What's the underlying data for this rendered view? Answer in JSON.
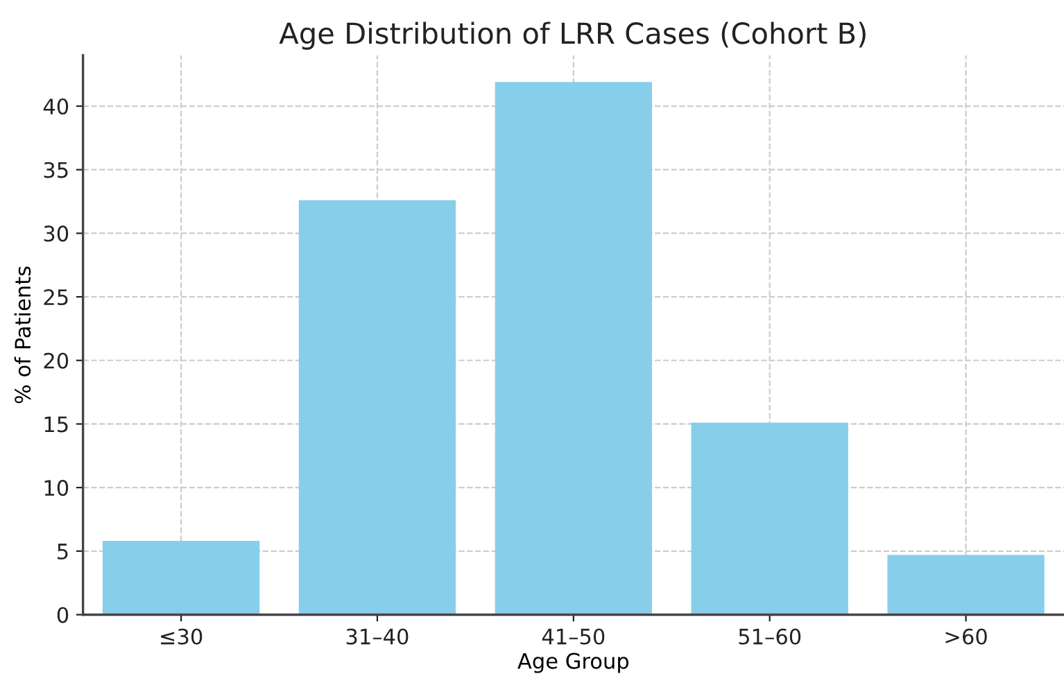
{
  "chart_data": {
    "type": "bar",
    "title": "Age Distribution of LRR Cases (Cohort B)",
    "xlabel": "Age Group",
    "ylabel": "% of Patients",
    "categories": [
      "≤30",
      "31–40",
      "41–50",
      "51–60",
      ">60"
    ],
    "values": [
      5.8,
      32.6,
      41.9,
      15.1,
      4.7
    ],
    "color": "#87ceeb",
    "ylim": [
      0,
      44
    ],
    "yticks": [
      0,
      5,
      10,
      15,
      20,
      25,
      30,
      35,
      40
    ],
    "grid": true
  }
}
